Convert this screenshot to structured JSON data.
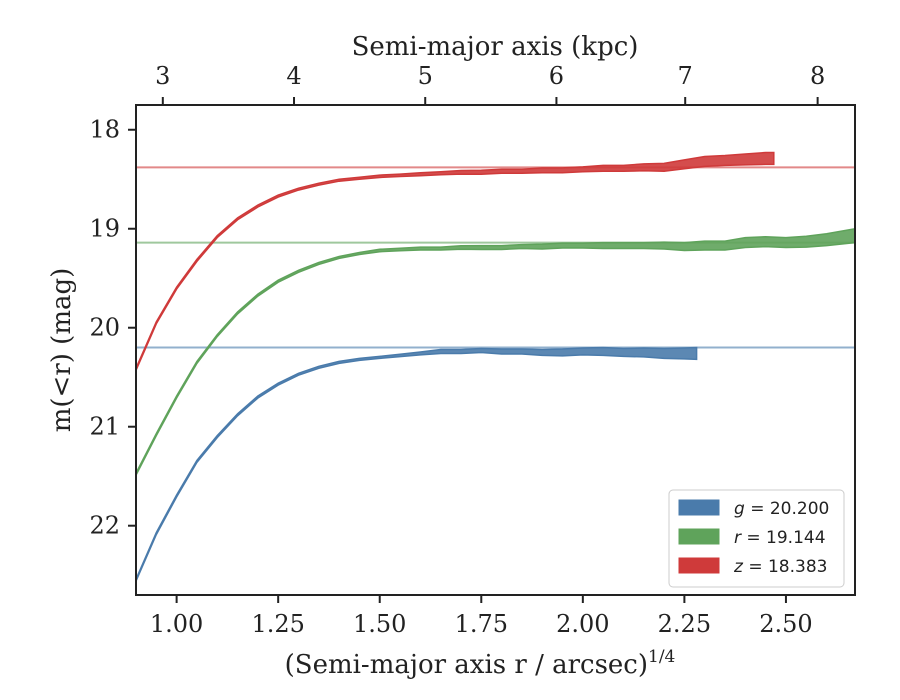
{
  "chart_data": {
    "type": "line",
    "xlabel": "(Semi-major axis r / arcsec)",
    "xlabel_exponent": "1/4",
    "ylabel": "m(<r) (mag)",
    "top_xlabel": "Semi-major axis (kpc)",
    "xlim": [
      0.9,
      2.67
    ],
    "ylim": [
      22.7,
      17.75
    ],
    "y_inverted": true,
    "grid": false,
    "legend_position": "lower-right",
    "x_ticks": [
      "1.00",
      "1.25",
      "1.50",
      "1.75",
      "2.00",
      "2.25",
      "2.50"
    ],
    "x_tick_values": [
      1.0,
      1.25,
      1.5,
      1.75,
      2.0,
      2.25,
      2.5
    ],
    "y_ticks": [
      "18",
      "19",
      "20",
      "21",
      "22"
    ],
    "y_tick_values": [
      18,
      19,
      20,
      21,
      22
    ],
    "top_ticks": [
      "3",
      "4",
      "5",
      "6",
      "7",
      "8"
    ],
    "top_tick_values": [
      0.966,
      1.289,
      1.612,
      1.935,
      2.252,
      2.578
    ],
    "series": [
      {
        "name": "g = 20.200",
        "legend_symbol": "g",
        "legend_value": "20.200",
        "color": "#4a7bab",
        "asymptote": 20.2,
        "points": [
          [
            0.9,
            22.55
          ],
          [
            0.95,
            22.08
          ],
          [
            1.0,
            21.7
          ],
          [
            1.05,
            21.35
          ],
          [
            1.1,
            21.1
          ],
          [
            1.15,
            20.88
          ],
          [
            1.2,
            20.7
          ],
          [
            1.25,
            20.57
          ],
          [
            1.3,
            20.47
          ],
          [
            1.35,
            20.4
          ],
          [
            1.4,
            20.35
          ],
          [
            1.45,
            20.32
          ],
          [
            1.5,
            20.3
          ],
          [
            1.55,
            20.28
          ],
          [
            1.6,
            20.26
          ],
          [
            1.65,
            20.24
          ],
          [
            1.7,
            20.24
          ],
          [
            1.75,
            20.23
          ],
          [
            1.8,
            20.24
          ],
          [
            1.85,
            20.24
          ],
          [
            1.9,
            20.25
          ],
          [
            1.95,
            20.25
          ],
          [
            2.0,
            20.24
          ],
          [
            2.05,
            20.24
          ],
          [
            2.1,
            20.25
          ],
          [
            2.15,
            20.25
          ],
          [
            2.2,
            20.26
          ],
          [
            2.25,
            20.26
          ],
          [
            2.28,
            20.26
          ]
        ],
        "band_width": [
          0.01,
          0.01,
          0.01,
          0.01,
          0.01,
          0.01,
          0.01,
          0.01,
          0.01,
          0.01,
          0.01,
          0.01,
          0.01,
          0.012,
          0.015,
          0.02,
          0.02,
          0.02,
          0.025,
          0.025,
          0.03,
          0.035,
          0.035,
          0.04,
          0.04,
          0.045,
          0.05,
          0.055,
          0.06
        ]
      },
      {
        "name": "r = 19.144",
        "legend_symbol": "r",
        "legend_value": "19.144",
        "color": "#5fa35b",
        "asymptote": 19.14,
        "points": [
          [
            0.9,
            21.48
          ],
          [
            0.95,
            21.08
          ],
          [
            1.0,
            20.7
          ],
          [
            1.05,
            20.35
          ],
          [
            1.1,
            20.08
          ],
          [
            1.15,
            19.85
          ],
          [
            1.2,
            19.67
          ],
          [
            1.25,
            19.53
          ],
          [
            1.3,
            19.43
          ],
          [
            1.35,
            19.35
          ],
          [
            1.4,
            19.29
          ],
          [
            1.45,
            19.25
          ],
          [
            1.5,
            19.22
          ],
          [
            1.55,
            19.21
          ],
          [
            1.6,
            19.2
          ],
          [
            1.65,
            19.2
          ],
          [
            1.7,
            19.19
          ],
          [
            1.75,
            19.19
          ],
          [
            1.8,
            19.19
          ],
          [
            1.85,
            19.18
          ],
          [
            1.9,
            19.18
          ],
          [
            1.95,
            19.17
          ],
          [
            2.0,
            19.17
          ],
          [
            2.05,
            19.17
          ],
          [
            2.1,
            19.17
          ],
          [
            2.15,
            19.17
          ],
          [
            2.2,
            19.17
          ],
          [
            2.25,
            19.18
          ],
          [
            2.3,
            19.17
          ],
          [
            2.35,
            19.17
          ],
          [
            2.4,
            19.14
          ],
          [
            2.45,
            19.13
          ],
          [
            2.5,
            19.14
          ],
          [
            2.55,
            19.13
          ],
          [
            2.6,
            19.11
          ],
          [
            2.67,
            19.07
          ]
        ],
        "band_width": [
          0.01,
          0.01,
          0.01,
          0.01,
          0.01,
          0.01,
          0.01,
          0.01,
          0.01,
          0.01,
          0.01,
          0.01,
          0.012,
          0.012,
          0.015,
          0.015,
          0.018,
          0.02,
          0.02,
          0.02,
          0.025,
          0.025,
          0.025,
          0.03,
          0.03,
          0.03,
          0.035,
          0.04,
          0.045,
          0.045,
          0.05,
          0.05,
          0.05,
          0.055,
          0.06,
          0.07
        ]
      },
      {
        "name": "z = 18.383",
        "legend_symbol": "z",
        "legend_value": "18.383",
        "color": "#cf3a3a",
        "asymptote": 18.38,
        "points": [
          [
            0.9,
            20.42
          ],
          [
            0.95,
            19.95
          ],
          [
            1.0,
            19.6
          ],
          [
            1.05,
            19.32
          ],
          [
            1.1,
            19.08
          ],
          [
            1.15,
            18.9
          ],
          [
            1.2,
            18.77
          ],
          [
            1.25,
            18.67
          ],
          [
            1.3,
            18.6
          ],
          [
            1.35,
            18.55
          ],
          [
            1.4,
            18.51
          ],
          [
            1.45,
            18.49
          ],
          [
            1.5,
            18.47
          ],
          [
            1.55,
            18.46
          ],
          [
            1.6,
            18.45
          ],
          [
            1.65,
            18.44
          ],
          [
            1.7,
            18.43
          ],
          [
            1.75,
            18.43
          ],
          [
            1.8,
            18.42
          ],
          [
            1.85,
            18.42
          ],
          [
            1.9,
            18.41
          ],
          [
            1.95,
            18.41
          ],
          [
            2.0,
            18.4
          ],
          [
            2.05,
            18.39
          ],
          [
            2.1,
            18.39
          ],
          [
            2.15,
            18.38
          ],
          [
            2.2,
            18.38
          ],
          [
            2.25,
            18.35
          ],
          [
            2.3,
            18.32
          ],
          [
            2.35,
            18.31
          ],
          [
            2.4,
            18.3
          ],
          [
            2.45,
            18.29
          ],
          [
            2.47,
            18.29
          ]
        ],
        "band_width": [
          0.01,
          0.01,
          0.01,
          0.01,
          0.01,
          0.01,
          0.01,
          0.01,
          0.01,
          0.01,
          0.01,
          0.01,
          0.012,
          0.012,
          0.015,
          0.015,
          0.018,
          0.02,
          0.02,
          0.02,
          0.025,
          0.025,
          0.025,
          0.03,
          0.03,
          0.035,
          0.04,
          0.045,
          0.05,
          0.05,
          0.055,
          0.06,
          0.06
        ]
      }
    ]
  }
}
